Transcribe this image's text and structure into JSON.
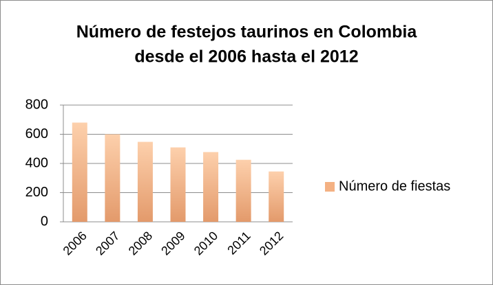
{
  "chart_data": {
    "type": "bar",
    "title": [
      "Número de festejos taurinos en Colombia",
      "desde el 2006 hasta el 2012"
    ],
    "categories": [
      "2006",
      "2007",
      "2008",
      "2009",
      "2010",
      "2011",
      "2012"
    ],
    "series": [
      {
        "name": "Número de fiestas",
        "color": "#f4b183",
        "values": [
          680,
          600,
          548,
          510,
          478,
          425,
          345
        ]
      }
    ],
    "ylim": [
      0,
      800
    ],
    "yticks": [
      0,
      200,
      400,
      600,
      800
    ],
    "grid": true,
    "legend": "right"
  }
}
